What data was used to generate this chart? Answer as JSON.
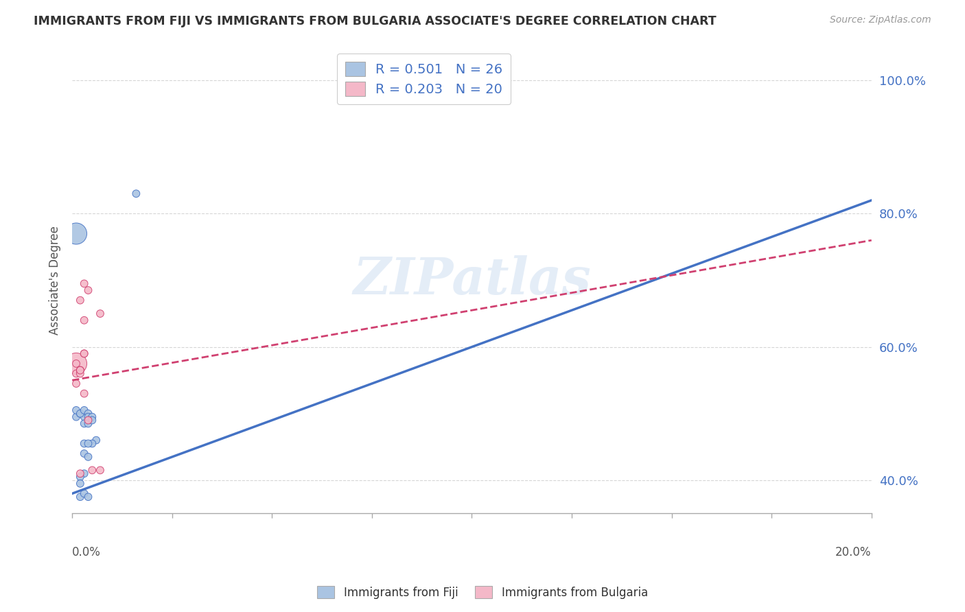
{
  "title": "IMMIGRANTS FROM FIJI VS IMMIGRANTS FROM BULGARIA ASSOCIATE'S DEGREE CORRELATION CHART",
  "source": "Source: ZipAtlas.com",
  "ylabel": "Associate's Degree",
  "xlim": [
    0.0,
    20.0
  ],
  "ylim": [
    35.0,
    105.0
  ],
  "fiji_color": "#aac4e2",
  "fiji_line_color": "#4472c4",
  "fiji_edge_color": "#4472c4",
  "bulgaria_color": "#f4b8c8",
  "bulgaria_line_color": "#d04070",
  "bulgaria_edge_color": "#d04070",
  "watermark": "ZIPatlas",
  "legend_r_fiji": "R = 0.501",
  "legend_n_fiji": "N = 26",
  "legend_r_bulgaria": "R = 0.203",
  "legend_n_bulgaria": "N = 20",
  "fiji_x": [
    0.1,
    0.2,
    0.1,
    0.3,
    0.2,
    0.3,
    0.4,
    0.3,
    0.4,
    0.5,
    0.4,
    0.5,
    0.3,
    0.6,
    0.5,
    0.4,
    0.3,
    0.4,
    0.3,
    0.2,
    0.2,
    0.3,
    1.6,
    0.2,
    0.4,
    0.1
  ],
  "fiji_y": [
    49.5,
    50.0,
    50.5,
    49.5,
    50.0,
    50.5,
    50.0,
    48.5,
    49.5,
    49.5,
    48.5,
    49.0,
    45.5,
    46.0,
    45.5,
    45.5,
    44.0,
    43.5,
    41.0,
    40.5,
    37.5,
    38.0,
    83.0,
    39.5,
    37.5,
    77.0
  ],
  "fiji_sizes": [
    60,
    60,
    60,
    60,
    60,
    60,
    60,
    60,
    60,
    60,
    60,
    60,
    60,
    60,
    60,
    60,
    60,
    60,
    60,
    60,
    60,
    60,
    60,
    60,
    60,
    500
  ],
  "bulgaria_x": [
    0.1,
    0.1,
    0.1,
    0.1,
    0.2,
    0.2,
    0.2,
    0.3,
    0.3,
    0.2,
    0.4,
    0.3,
    0.3,
    0.7,
    0.2,
    0.4,
    0.3,
    0.2,
    0.7,
    0.5
  ],
  "bulgaria_y": [
    57.5,
    56.0,
    54.5,
    57.5,
    56.5,
    56.5,
    56.0,
    59.0,
    59.0,
    56.5,
    49.0,
    53.0,
    64.0,
    65.0,
    67.0,
    68.5,
    69.5,
    41.0,
    41.5,
    41.5
  ],
  "bulgaria_sizes": [
    500,
    60,
    60,
    60,
    60,
    60,
    60,
    60,
    60,
    60,
    60,
    60,
    60,
    60,
    60,
    60,
    60,
    60,
    60,
    60
  ],
  "fiji_trend_x0": 0.0,
  "fiji_trend_y0": 38.0,
  "fiji_trend_x1": 20.0,
  "fiji_trend_y1": 82.0,
  "bulgaria_trend_x0": 0.0,
  "bulgaria_trend_y0": 55.0,
  "bulgaria_trend_x1": 20.0,
  "bulgaria_trend_y1": 76.0,
  "yticks": [
    40.0,
    60.0,
    80.0,
    100.0
  ],
  "ytick_labels": [
    "40.0%",
    "60.0%",
    "80.0%",
    "100.0%"
  ]
}
